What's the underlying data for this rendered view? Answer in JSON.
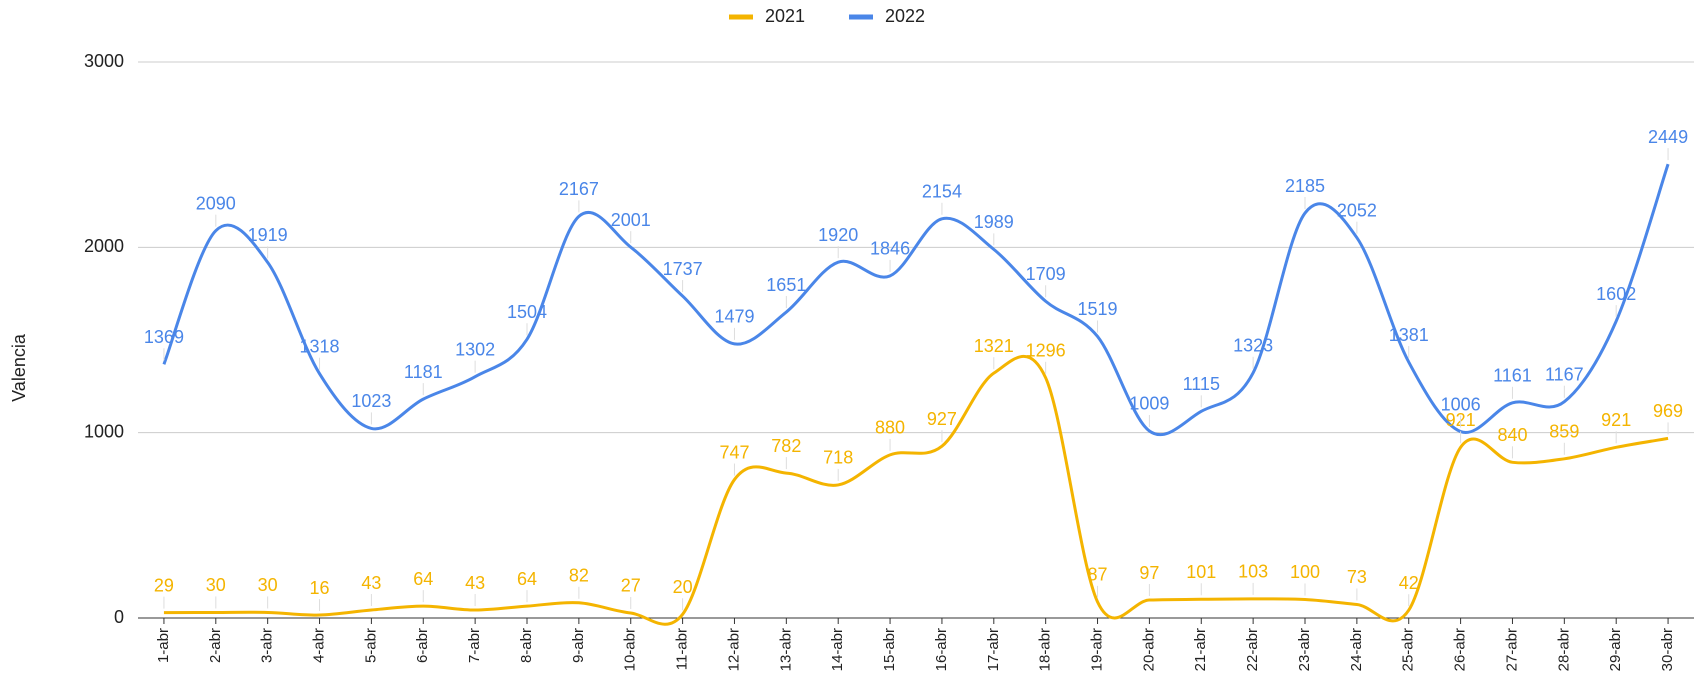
{
  "chart_data": {
    "type": "line",
    "y_label": "Valencia",
    "categories": [
      "1-abr",
      "2-abr",
      "3-abr",
      "4-abr",
      "5-abr",
      "6-abr",
      "7-abr",
      "8-abr",
      "9-abr",
      "10-abr",
      "11-abr",
      "12-abr",
      "13-abr",
      "14-abr",
      "15-abr",
      "16-abr",
      "17-abr",
      "18-abr",
      "19-abr",
      "20-abr",
      "21-abr",
      "22-abr",
      "23-abr",
      "24-abr",
      "25-abr",
      "26-abr",
      "27-abr",
      "28-abr",
      "29-abr",
      "30-abr"
    ],
    "series": [
      {
        "name": "2021",
        "color": "#f4b400",
        "values": [
          29,
          30,
          30,
          16,
          43,
          64,
          43,
          64,
          82,
          27,
          20,
          747,
          782,
          718,
          880,
          927,
          1321,
          1296,
          87,
          97,
          101,
          103,
          100,
          73,
          42,
          921,
          840,
          859,
          921,
          969
        ]
      },
      {
        "name": "2022",
        "color": "#4a86e8",
        "values": [
          1369,
          2090,
          1919,
          1318,
          1023,
          1181,
          1302,
          1504,
          2167,
          2001,
          1737,
          1479,
          1651,
          1920,
          1846,
          2154,
          1989,
          1709,
          1519,
          1009,
          1115,
          1323,
          2185,
          2052,
          1381,
          1006,
          1161,
          1167,
          1602,
          2449
        ]
      }
    ],
    "ylim": [
      0,
      3000
    ],
    "yticks": [
      0,
      1000,
      2000,
      3000
    ],
    "grid": true,
    "legend": "top"
  }
}
